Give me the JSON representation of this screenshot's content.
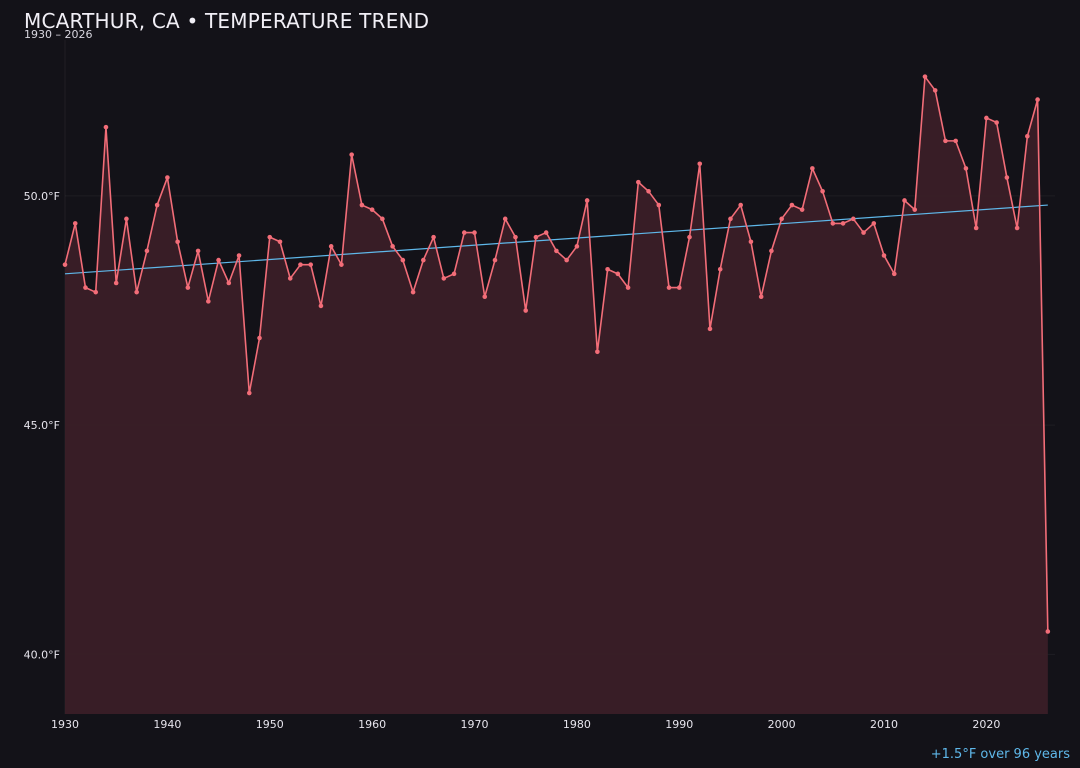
{
  "header": {
    "title": "MCARTHUR, CA • TEMPERATURE TREND",
    "subtitle": "1930 – 2026"
  },
  "footer": {
    "trend_note": "+1.5°F over 96 years"
  },
  "colors": {
    "background": "#131218",
    "series_line": "#f26d78",
    "series_fill": "#3a1f27",
    "trend_line": "#5fb8ea",
    "text": "#e6e4ec"
  },
  "chart_data": {
    "type": "line",
    "title": "MCARTHUR, CA • TEMPERATURE TREND",
    "subtitle": "1930 – 2026",
    "xlabel": "",
    "ylabel": "",
    "xlim": [
      1930,
      2026.7
    ],
    "ylim": [
      38.7,
      53.4
    ],
    "grid": true,
    "legend": "none",
    "x_ticks": [
      {
        "value": 1930,
        "label": "1930"
      },
      {
        "value": 1940,
        "label": "1940"
      },
      {
        "value": 1950,
        "label": "1950"
      },
      {
        "value": 1960,
        "label": "1960"
      },
      {
        "value": 1970,
        "label": "1970"
      },
      {
        "value": 1980,
        "label": "1980"
      },
      {
        "value": 1990,
        "label": "1990"
      },
      {
        "value": 2000,
        "label": "2000"
      },
      {
        "value": 2010,
        "label": "2010"
      },
      {
        "value": 2020,
        "label": "2020"
      }
    ],
    "y_ticks": [
      {
        "value": 40,
        "label": "40.0°F"
      },
      {
        "value": 45,
        "label": "45.0°F"
      },
      {
        "value": 50,
        "label": "50.0°F"
      }
    ],
    "x": [
      1930,
      1931,
      1932,
      1933,
      1934,
      1935,
      1936,
      1937,
      1938,
      1939,
      1940,
      1941,
      1942,
      1943,
      1944,
      1945,
      1946,
      1947,
      1948,
      1949,
      1950,
      1951,
      1952,
      1953,
      1954,
      1955,
      1956,
      1957,
      1958,
      1959,
      1960,
      1961,
      1962,
      1963,
      1964,
      1965,
      1966,
      1967,
      1968,
      1969,
      1970,
      1971,
      1972,
      1973,
      1974,
      1975,
      1976,
      1977,
      1978,
      1979,
      1980,
      1981,
      1982,
      1983,
      1984,
      1985,
      1986,
      1987,
      1988,
      1989,
      1990,
      1991,
      1992,
      1993,
      1994,
      1995,
      1996,
      1997,
      1998,
      1999,
      2000,
      2001,
      2002,
      2003,
      2004,
      2005,
      2006,
      2007,
      2008,
      2009,
      2010,
      2011,
      2012,
      2013,
      2014,
      2015,
      2016,
      2017,
      2018,
      2019,
      2020,
      2021,
      2022,
      2023,
      2024,
      2025,
      2026
    ],
    "series": [
      {
        "values": [
          48.5,
          49.4,
          48.0,
          47.9,
          51.5,
          48.1,
          49.5,
          47.9,
          48.8,
          49.8,
          50.4,
          49.0,
          48.0,
          48.8,
          47.7,
          48.6,
          48.1,
          48.7,
          45.7,
          46.9,
          49.1,
          49.0,
          48.2,
          48.5,
          48.5,
          47.6,
          48.9,
          48.5,
          50.9,
          49.8,
          49.7,
          49.5,
          48.9,
          48.6,
          47.9,
          48.6,
          49.1,
          48.2,
          48.3,
          49.2,
          49.2,
          47.8,
          48.6,
          49.5,
          49.1,
          47.5,
          49.1,
          49.2,
          48.8,
          48.6,
          48.9,
          49.9,
          46.6,
          48.4,
          48.3,
          48.0,
          50.3,
          50.1,
          49.8,
          48.0,
          48.0,
          49.1,
          50.7,
          47.1,
          48.4,
          49.5,
          49.8,
          49.0,
          47.8,
          48.8,
          49.5,
          49.8,
          49.7,
          50.6,
          50.1,
          49.4,
          49.4,
          49.5,
          49.2,
          49.4,
          48.7,
          48.3,
          49.9,
          49.7,
          52.6,
          52.3,
          51.2,
          51.2,
          50.6,
          49.3,
          51.7,
          51.6,
          50.4,
          49.3,
          51.3,
          52.1,
          40.5
        ]
      }
    ],
    "trend": {
      "x": [
        1930,
        2026
      ],
      "values": [
        48.3,
        49.8
      ]
    }
  }
}
